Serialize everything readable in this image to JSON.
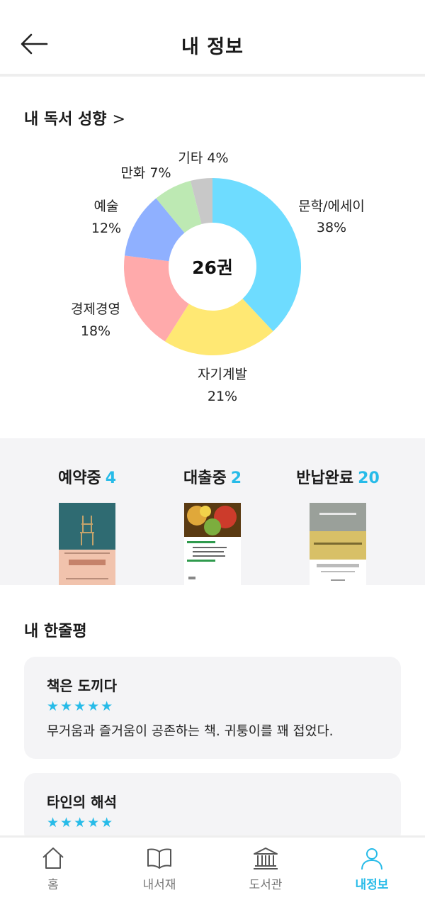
{
  "header": {
    "title": "내 정보"
  },
  "tendency": {
    "title": "내 독서 성향",
    "chevron": ">",
    "center_label": "26권"
  },
  "chart_data": {
    "type": "pie",
    "title": "내 독서 성향",
    "center_label": "26권",
    "slices": [
      {
        "name": "문학/에세이",
        "value": 38,
        "label": "38%",
        "color": "#6edcff"
      },
      {
        "name": "자기계발",
        "value": 21,
        "label": "21%",
        "color": "#ffe873"
      },
      {
        "name": "경제경영",
        "value": 18,
        "label": "18%",
        "color": "#ffaaab"
      },
      {
        "name": "예술",
        "value": 12,
        "label": "12%",
        "color": "#8fb0ff"
      },
      {
        "name": "만화",
        "value": 7,
        "label": "만화 7%",
        "color": "#bde9b3"
      },
      {
        "name": "기타",
        "value": 4,
        "label": "기타 4%",
        "color": "#c8c8c8"
      }
    ]
  },
  "status": {
    "reserved": {
      "label": "예약중",
      "count": "4"
    },
    "borrowed": {
      "label": "대출중",
      "count": "2"
    },
    "returned": {
      "label": "반납완료",
      "count": "20"
    }
  },
  "reviews": {
    "title": "내 한줄평",
    "items": [
      {
        "title": "책은 도끼다",
        "stars": "★★★★★",
        "text": "무거움과 즐거움이 공존하는 책. 귀퉁이를 꽤 접었다."
      },
      {
        "title": "타인의 해석",
        "stars": "★★★★★",
        "text": ""
      }
    ]
  },
  "nav": {
    "home": "홈",
    "mylib": "내서재",
    "library": "도서관",
    "profile": "내정보"
  },
  "colors": {
    "accent": "#27bbe8"
  }
}
